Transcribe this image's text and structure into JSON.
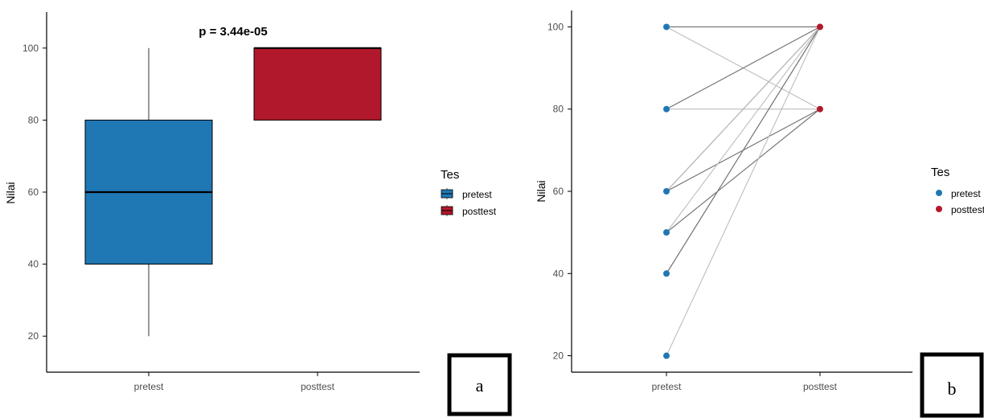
{
  "colors": {
    "pretest": "#1f77b4",
    "posttest": "#b2182b",
    "line_dark": "#6e6e6e",
    "line_light": "#bdbdbd"
  },
  "panels": {
    "a": {
      "label": "a",
      "annotation": "p = 3.44e-05",
      "ylabel": "Nilai"
    },
    "b": {
      "label": "b",
      "ylabel": "Nilai"
    }
  },
  "legend": {
    "title": "Tes",
    "items": [
      "pretest",
      "posttest"
    ]
  },
  "chart_data": [
    {
      "type": "box",
      "categories": [
        "pretest",
        "posttest"
      ],
      "series": [
        {
          "name": "pretest",
          "min": 20,
          "q1": 40,
          "median": 60,
          "q3": 80,
          "max": 100
        },
        {
          "name": "posttest",
          "min": 80,
          "q1": 80,
          "median": 100,
          "q3": 100,
          "max": 100
        }
      ],
      "ylabel": "Nilai",
      "ylim": [
        10,
        110
      ],
      "yticks": [
        20,
        40,
        60,
        80,
        100
      ],
      "annotation": "p = 3.44e-05",
      "legend_title": "Tes",
      "legend_position": "right",
      "grid": false
    },
    {
      "type": "scatter",
      "categories": [
        "pretest",
        "posttest"
      ],
      "pairs": [
        [
          100,
          100
        ],
        [
          100,
          80
        ],
        [
          80,
          100
        ],
        [
          80,
          80
        ],
        [
          60,
          100
        ],
        [
          60,
          100
        ],
        [
          60,
          80
        ],
        [
          50,
          100
        ],
        [
          50,
          80
        ],
        [
          40,
          100
        ],
        [
          40,
          100
        ],
        [
          20,
          100
        ]
      ],
      "pretest_points": [
        100,
        80,
        60,
        50,
        40,
        20
      ],
      "posttest_points": [
        100,
        80
      ],
      "ylabel": "Nilai",
      "ylim": [
        16,
        104
      ],
      "yticks": [
        20,
        40,
        60,
        80,
        100
      ],
      "legend_title": "Tes",
      "legend_position": "right",
      "grid": false
    }
  ]
}
